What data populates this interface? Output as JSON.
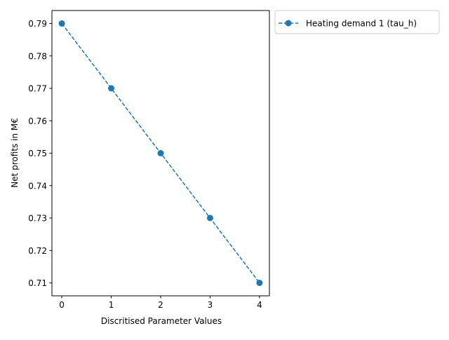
{
  "chart_data": {
    "type": "line",
    "x": [
      0,
      1,
      2,
      3,
      4
    ],
    "series": [
      {
        "name": "Heating demand 1 (tau_h)",
        "values": [
          0.79,
          0.77,
          0.75,
          0.73,
          0.71
        ],
        "color": "#1f77b4",
        "line_style": "dashed",
        "marker": "circle"
      }
    ],
    "xlabel": "Discritised Parameter Values",
    "ylabel": "Net profits in M€",
    "xticks": [
      "0",
      "1",
      "2",
      "3",
      "4"
    ],
    "yticks": [
      "0.71",
      "0.72",
      "0.73",
      "0.74",
      "0.75",
      "0.76",
      "0.77",
      "0.78",
      "0.79"
    ],
    "xlim": [
      -0.2,
      4.2
    ],
    "ylim": [
      0.706,
      0.794
    ],
    "grid": false,
    "legend_position": "outside-top-right"
  }
}
